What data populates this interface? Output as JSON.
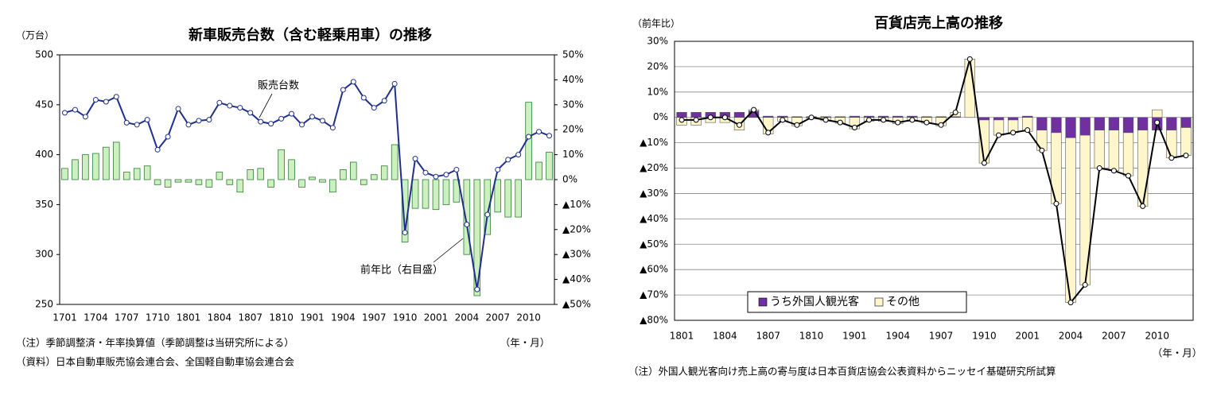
{
  "chart_data": [
    {
      "type": "combo",
      "title": "新車販売台数（含む軽乗用車）の推移",
      "y_label": "（万台）",
      "x_label": "（年・月）",
      "notes": [
        "（注）季節調整済・年率換算値（季節調整は当研究所による）",
        "（資料）日本自動車販売協会連合会、全国軽自動車協会連合会"
      ],
      "categories": [
        "1701",
        null,
        null,
        "1704",
        null,
        null,
        "1707",
        null,
        null,
        "1710",
        null,
        null,
        "1801",
        null,
        null,
        "1804",
        null,
        null,
        "1807",
        null,
        null,
        "1810",
        null,
        null,
        "1901",
        null,
        null,
        "1904",
        null,
        null,
        "1907",
        null,
        null,
        "1910",
        null,
        null,
        "2001",
        null,
        null,
        "2004",
        null,
        null,
        "2007",
        null,
        null,
        "2010",
        null,
        null
      ],
      "series": [
        {
          "name": "前年比（右目盛）",
          "type": "bar",
          "axis": "y2",
          "color": "#ccf0c0",
          "values": [
            4.5,
            8,
            10,
            10.5,
            13,
            15,
            3,
            4.5,
            5.5,
            -2,
            -3,
            -1,
            -1,
            -2,
            -3,
            3,
            -2,
            -5,
            4,
            4.5,
            -3,
            12,
            8,
            -3,
            1,
            -1,
            -5,
            4,
            7,
            -2,
            2,
            5.5,
            14,
            -25,
            -11.5,
            -11.5,
            -12,
            -10,
            -9,
            -30,
            -46.5,
            -22,
            -13,
            -15,
            -15,
            31,
            7,
            11
          ]
        },
        {
          "name": "販売台数",
          "type": "line",
          "axis": "y",
          "color": "#1f2f8a",
          "values": [
            442,
            445,
            438,
            455,
            453,
            458,
            432,
            430,
            435,
            405,
            418,
            446,
            430,
            434,
            435,
            452,
            449,
            447,
            442,
            433,
            431,
            436,
            441,
            430,
            438,
            434,
            427,
            465,
            473,
            457,
            447,
            454,
            471,
            322,
            396,
            382,
            378,
            380,
            385,
            330,
            265,
            340,
            385,
            395,
            400,
            418,
            423,
            419
          ]
        }
      ],
      "ylim": [
        250,
        500
      ],
      "yticks": [
        250,
        300,
        350,
        400,
        450,
        500
      ],
      "y2lim": [
        -50,
        50
      ],
      "y2ticks": [
        {
          "value": -50,
          "label": "▲50%"
        },
        {
          "value": -40,
          "label": "▲40%"
        },
        {
          "value": -30,
          "label": "▲30%"
        },
        {
          "value": -20,
          "label": "▲20%"
        },
        {
          "value": -10,
          "label": "▲10%"
        },
        {
          "value": 0,
          "label": "0%"
        },
        {
          "value": 10,
          "label": "10%"
        },
        {
          "value": 20,
          "label": "20%"
        },
        {
          "value": 30,
          "label": "30%"
        },
        {
          "value": 40,
          "label": "40%"
        },
        {
          "value": 50,
          "label": "50%"
        }
      ],
      "grid": false
    },
    {
      "type": "stacked_bar",
      "title": "百貨店売上高の推移",
      "y_label": "（前年比）",
      "x_label": "（年・月）",
      "notes": [
        "（注）外国人観光客向け売上高の寄与度は日本百貨店協会公表資料からニッセイ基礎研究所試算"
      ],
      "legend": "lower left",
      "categories": [
        "1801",
        null,
        null,
        "1804",
        null,
        null,
        "1807",
        null,
        null,
        "1810",
        null,
        null,
        "1901",
        null,
        null,
        "1904",
        null,
        null,
        "1907",
        null,
        null,
        "1910",
        null,
        null,
        "2001",
        null,
        null,
        "2004",
        null,
        null,
        "2007",
        null,
        null,
        "2010",
        null,
        null
      ],
      "series": [
        {
          "name": "うち外国人観光客",
          "type": "bar",
          "color": "#7030a0",
          "values": [
            2,
            2,
            2,
            2,
            2,
            2.5,
            0.5,
            0.5,
            0.3,
            0.3,
            0.3,
            0.3,
            0.5,
            0.5,
            0.5,
            0.5,
            0.5,
            0.3,
            0.3,
            0.3,
            0,
            -1,
            -1,
            -1,
            0.5,
            -5,
            -6,
            -8,
            -7,
            -5,
            -5,
            -6,
            -5,
            -5,
            -5,
            -4
          ]
        },
        {
          "name": "その他",
          "type": "bar",
          "color": "#fff6cc",
          "values": [
            -3,
            -3,
            -2,
            -2,
            -5,
            0.5,
            -6.5,
            -1.5,
            -3.3,
            -0.3,
            -1.3,
            -2.3,
            -4.5,
            -1.5,
            -1.5,
            -2.5,
            -1.5,
            -2.3,
            -3.3,
            1.7,
            23,
            -17,
            -6,
            -5,
            -5.5,
            -8,
            -28,
            -65,
            -59,
            -15,
            -16,
            -17,
            -30,
            3,
            -11,
            -11
          ]
        },
        {
          "type": "line",
          "color": "#000000",
          "values": [
            -1,
            -1,
            0,
            0,
            -3,
            3,
            -6,
            -1,
            -3,
            0,
            -1,
            -2,
            -4,
            -1,
            -1,
            -2,
            -1,
            -2,
            -3,
            2,
            23,
            -18,
            -7,
            -6,
            -5,
            -13,
            -34,
            -73,
            -66,
            -20,
            -21,
            -23,
            -35,
            -2,
            -16,
            -15
          ]
        }
      ],
      "ylim": [
        -80,
        30
      ],
      "yticks": [
        {
          "value": -80,
          "label": "▲80%"
        },
        {
          "value": -70,
          "label": "▲70%"
        },
        {
          "value": -60,
          "label": "▲60%"
        },
        {
          "value": -50,
          "label": "▲50%"
        },
        {
          "value": -40,
          "label": "▲40%"
        },
        {
          "value": -30,
          "label": "▲30%"
        },
        {
          "value": -20,
          "label": "▲20%"
        },
        {
          "value": -10,
          "label": "▲10%"
        },
        {
          "value": 0,
          "label": "0%"
        },
        {
          "value": 10,
          "label": "10%"
        },
        {
          "value": 20,
          "label": "20%"
        },
        {
          "value": 30,
          "label": "30%"
        }
      ],
      "grid": true
    }
  ]
}
